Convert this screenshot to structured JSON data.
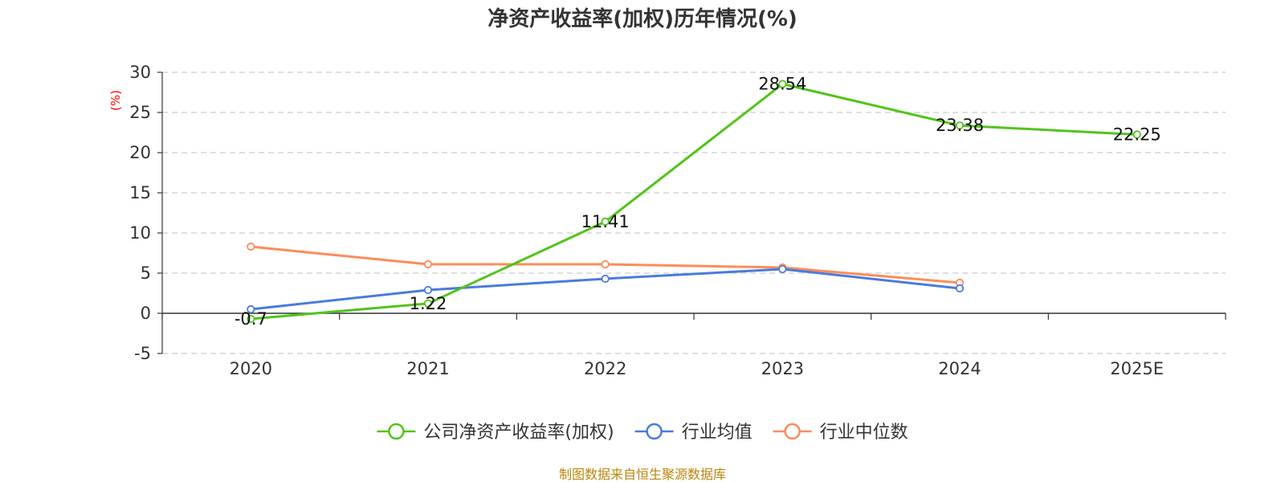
{
  "chart_data": {
    "type": "line",
    "title": "净资产收益率(加权)历年情况(%)",
    "ylabel": "(%)",
    "categories": [
      "2020",
      "2021",
      "2022",
      "2023",
      "2024",
      "2025E"
    ],
    "yticks": [
      30,
      25,
      20,
      15,
      10,
      5,
      0,
      -5
    ],
    "ylim": [
      -5,
      30
    ],
    "grid": true,
    "legend_position": "bottom",
    "series": [
      {
        "name": "公司净资产收益率(加权)",
        "color": "#52c41a",
        "values": [
          -0.7,
          1.22,
          11.41,
          28.54,
          23.38,
          22.25
        ],
        "labels": [
          "-0.7",
          "1.22",
          "11.41",
          "28.54",
          "23.38",
          "22.25"
        ]
      },
      {
        "name": "行业均值",
        "color": "#4a7bdc",
        "values": [
          0.5,
          2.9,
          4.3,
          5.5,
          3.1,
          null
        ],
        "labels": []
      },
      {
        "name": "行业中位数",
        "color": "#fd8c5a",
        "values": [
          8.3,
          6.1,
          6.1,
          5.7,
          3.8,
          null
        ],
        "labels": []
      }
    ]
  },
  "source": "制图数据来自恒生聚源数据库"
}
